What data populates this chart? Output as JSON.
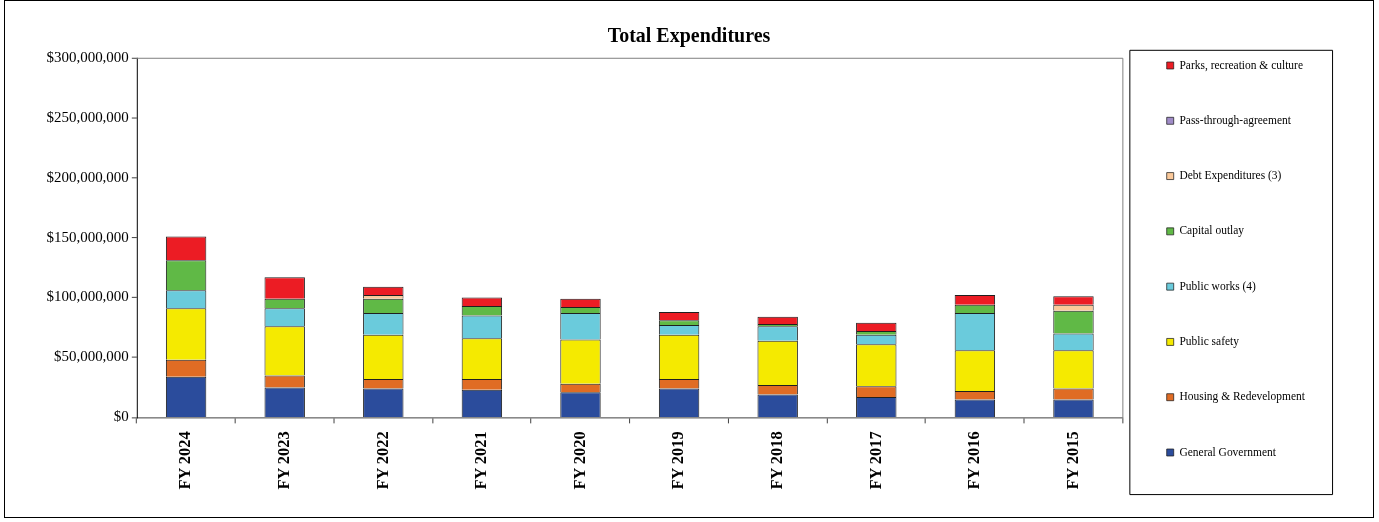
{
  "chart_data": {
    "type": "bar",
    "title": "Total Expenditures",
    "stacked": true,
    "legend": "right",
    "categories": [
      "FY 2024",
      "FY 2023",
      "FY 2022",
      "FY 2021",
      "FY 2020",
      "FY 2019",
      "FY 2018",
      "FY 2017",
      "FY 2016",
      "FY 2015"
    ],
    "ylim": [
      0,
      300000000
    ],
    "yticks": [
      {
        "value": 0,
        "label": "$0"
      },
      {
        "value": 50000000,
        "label": "$50,000,000"
      },
      {
        "value": 100000000,
        "label": "$100,000,000"
      },
      {
        "value": 150000000,
        "label": "$150,000,000"
      },
      {
        "value": 200000000,
        "label": "$200,000,000"
      },
      {
        "value": 250000000,
        "label": "$250,000,000"
      },
      {
        "value": 300000000,
        "label": "$300,000,000"
      }
    ],
    "series": [
      {
        "name": "General Government",
        "color": "#2b4c9c",
        "values": [
          34000000,
          25000000,
          24000000,
          23000000,
          21000000,
          24000000,
          19000000,
          17000000,
          15000000,
          15000000
        ]
      },
      {
        "name": "Housing & Redevelopment",
        "color": "#e06c24",
        "values": [
          14000000,
          10000000,
          8000000,
          9000000,
          7000000,
          8000000,
          8000000,
          9000000,
          7000000,
          9000000
        ]
      },
      {
        "name": "Public safety",
        "color": "#f5ea00",
        "values": [
          43000000,
          41000000,
          37000000,
          34000000,
          37000000,
          37000000,
          37000000,
          35000000,
          34000000,
          32000000
        ]
      },
      {
        "name": "Public works (4)",
        "color": "#6acbdc",
        "values": [
          15000000,
          15000000,
          18000000,
          19000000,
          22000000,
          8000000,
          12000000,
          8000000,
          31000000,
          14000000
        ]
      },
      {
        "name": "Capital outlay",
        "color": "#60b946",
        "values": [
          25000000,
          8000000,
          12000000,
          8000000,
          5000000,
          4000000,
          2000000,
          3000000,
          7000000,
          19000000
        ]
      },
      {
        "name": "Debt Expenditures (3)",
        "color": "#fbc99a",
        "values": [
          null,
          null,
          3000000,
          null,
          null,
          null,
          null,
          null,
          null,
          5000000
        ]
      },
      {
        "name": "Pass-through-agreement",
        "color": "#a08cc8",
        "values": [
          null,
          null,
          null,
          null,
          null,
          null,
          null,
          null,
          null,
          null
        ]
      },
      {
        "name": "Parks, recreation & culture",
        "color": "#ec1c24",
        "values": [
          20000000,
          18000000,
          7000000,
          7000000,
          7000000,
          7000000,
          6000000,
          7000000,
          8000000,
          7000000
        ]
      }
    ]
  }
}
